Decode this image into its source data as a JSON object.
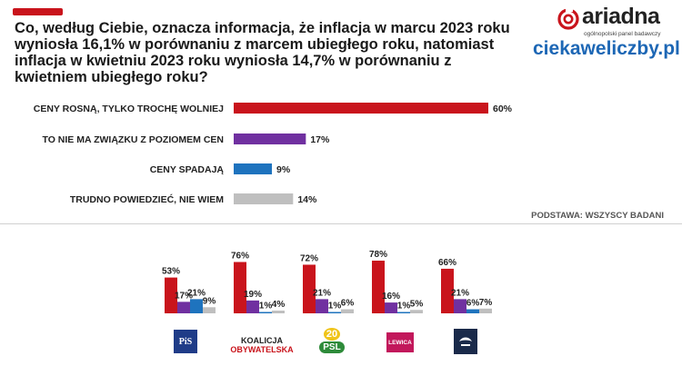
{
  "header": {
    "question": "Co, według Ciebie, oznacza informacja, że inflacja w marcu 2023 roku wyniosła 16,1% w porównaniu z marcem ubiegłego roku, natomiast inflacja w kwietniu 2023 roku wyniosła 14,7% w porównaniu z kwietniem ubiegłego roku?",
    "accent_color": "#c9141c"
  },
  "brand": {
    "name": "ariadna",
    "tagline": "ogólnopolski panel badawczy",
    "site": "ciekaweliczby.pl",
    "site_color": "#1d67b5"
  },
  "base_note": "PODSTAWA: WSZYSCY BADANI",
  "colors": [
    "#c9141c",
    "#7030a0",
    "#1e73be",
    "#bfbfbf"
  ],
  "chart_data": [
    {
      "type": "bar",
      "orientation": "horizontal",
      "categories": [
        "CENY ROSNĄ, TYLKO TROCHĘ WOLNIEJ",
        "TO NIE MA ZWIĄZKU Z POZIOMEM CEN",
        "CENY SPADAJĄ",
        "TRUDNO POWIEDZIEĆ, NIE WIEM"
      ],
      "values": [
        60,
        17,
        9,
        14
      ],
      "value_labels": [
        "60%",
        "17%",
        "9%",
        "14%"
      ],
      "unit": "%",
      "xlim": [
        0,
        60
      ]
    },
    {
      "type": "bar",
      "orientation": "vertical",
      "groups": [
        {
          "party": "PiS",
          "values": [
            53,
            17,
            21,
            9
          ],
          "labels": [
            "53%",
            "17%",
            "21%",
            "9%"
          ]
        },
        {
          "party": "KOALICJA OBYWATELSKA",
          "values": [
            76,
            19,
            1,
            4
          ],
          "labels": [
            "76%",
            "19%",
            "1%",
            "4%"
          ]
        },
        {
          "party": "PSL",
          "values": [
            72,
            21,
            1,
            6
          ],
          "labels": [
            "72%",
            "21%",
            "1%",
            "6%"
          ]
        },
        {
          "party": "LEWICA",
          "values": [
            78,
            16,
            1,
            5
          ],
          "labels": [
            "78%",
            "16%",
            "1%",
            "5%"
          ]
        },
        {
          "party": "KONFEDERACJA",
          "values": [
            66,
            21,
            6,
            7
          ],
          "labels": [
            "66%",
            "21%",
            "6%",
            "7%"
          ]
        }
      ],
      "ylim": [
        0,
        78
      ]
    }
  ],
  "party_logos": {
    "pis": "PiS",
    "ko_line1": "KOALICJA",
    "ko_line2": "OBYWATELSKA",
    "psl_number": "20",
    "psl": "PSL",
    "lewica": "LEWICA"
  }
}
